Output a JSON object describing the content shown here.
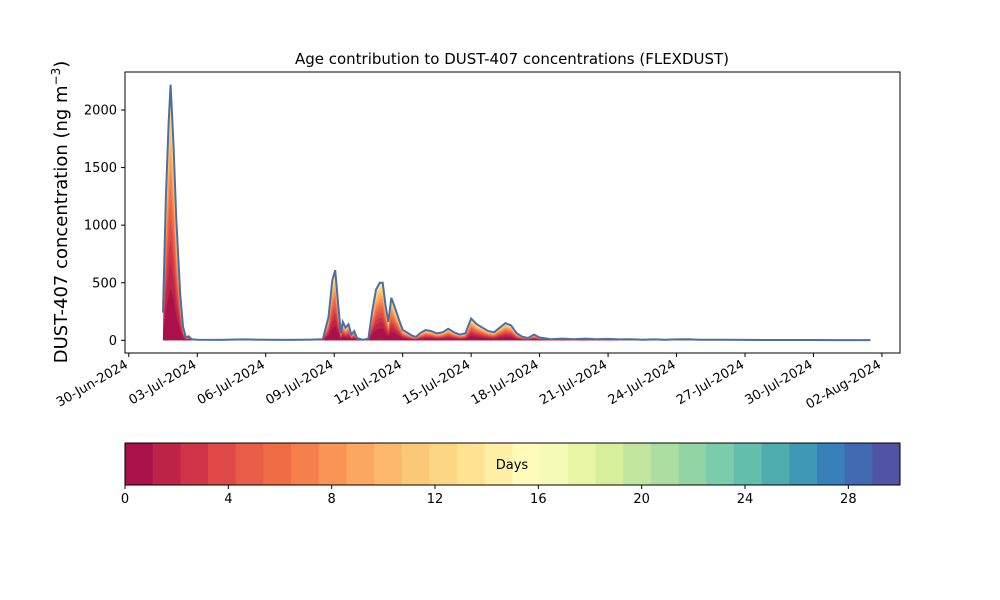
{
  "chart_data": {
    "type": "area",
    "title": "Age contribution to DUST-407 concentrations (FLEXDUST)",
    "ylabel": "DUST-407 concentration (ng m⁻³)",
    "ylabel_main": "DUST-407 concentration (ng m",
    "ylabel_sup": "−3",
    "ylabel_close": ")",
    "xlabel": "",
    "x_axis_kind": "date",
    "xlim": [
      "2024-06-29T20:00",
      "2024-08-02T19:00"
    ],
    "ylim": [
      -110,
      2330
    ],
    "yticks": [
      0,
      500,
      1000,
      1500,
      2000
    ],
    "xtick_dates": [
      "2024-06-30",
      "2024-07-03",
      "2024-07-06",
      "2024-07-09",
      "2024-07-12",
      "2024-07-15",
      "2024-07-18",
      "2024-07-21",
      "2024-07-24",
      "2024-07-27",
      "2024-07-30",
      "2024-08-02"
    ],
    "xtick_labels": [
      "30-Jun-2024",
      "03-Jul-2024",
      "06-Jul-2024",
      "09-Jul-2024",
      "12-Jul-2024",
      "15-Jul-2024",
      "18-Jul-2024",
      "21-Jul-2024",
      "24-Jul-2024",
      "27-Jul-2024",
      "30-Jul-2024",
      "02-Aug-2024"
    ],
    "total_series": {
      "color": "#4a6fa5",
      "points": [
        [
          "2024-07-01T12:00",
          240
        ],
        [
          "2024-07-01T15:00",
          1250
        ],
        [
          "2024-07-01T18:00",
          1900
        ],
        [
          "2024-07-01T20:00",
          2220
        ],
        [
          "2024-07-01T23:00",
          1700
        ],
        [
          "2024-07-02T02:00",
          1050
        ],
        [
          "2024-07-02T06:00",
          400
        ],
        [
          "2024-07-02T09:00",
          120
        ],
        [
          "2024-07-02T12:00",
          25
        ],
        [
          "2024-07-02T15:00",
          35
        ],
        [
          "2024-07-02T18:00",
          10
        ],
        [
          "2024-07-03T00:00",
          5
        ],
        [
          "2024-07-04T00:00",
          4
        ],
        [
          "2024-07-05T00:00",
          8
        ],
        [
          "2024-07-06T00:00",
          5
        ],
        [
          "2024-07-07T00:00",
          4
        ],
        [
          "2024-07-08T00:00",
          6
        ],
        [
          "2024-07-08T12:00",
          10
        ],
        [
          "2024-07-08T18:00",
          200
        ],
        [
          "2024-07-08T22:00",
          520
        ],
        [
          "2024-07-09T01:00",
          610
        ],
        [
          "2024-07-09T04:00",
          330
        ],
        [
          "2024-07-09T07:00",
          60
        ],
        [
          "2024-07-09T09:00",
          160
        ],
        [
          "2024-07-09T12:00",
          110
        ],
        [
          "2024-07-09T15:00",
          140
        ],
        [
          "2024-07-09T18:00",
          50
        ],
        [
          "2024-07-09T21:00",
          80
        ],
        [
          "2024-07-10T00:00",
          20
        ],
        [
          "2024-07-10T06:00",
          5
        ],
        [
          "2024-07-10T12:00",
          15
        ],
        [
          "2024-07-10T16:00",
          250
        ],
        [
          "2024-07-10T20:00",
          440
        ],
        [
          "2024-07-11T00:00",
          500
        ],
        [
          "2024-07-11T03:00",
          500
        ],
        [
          "2024-07-11T06:00",
          300
        ],
        [
          "2024-07-11T09:00",
          160
        ],
        [
          "2024-07-11T12:00",
          370
        ],
        [
          "2024-07-11T16:00",
          280
        ],
        [
          "2024-07-11T20:00",
          180
        ],
        [
          "2024-07-12T00:00",
          90
        ],
        [
          "2024-07-12T06:00",
          60
        ],
        [
          "2024-07-12T10:00",
          40
        ],
        [
          "2024-07-12T14:00",
          30
        ],
        [
          "2024-07-12T18:00",
          60
        ],
        [
          "2024-07-13T00:00",
          90
        ],
        [
          "2024-07-13T06:00",
          80
        ],
        [
          "2024-07-13T12:00",
          60
        ],
        [
          "2024-07-13T18:00",
          70
        ],
        [
          "2024-07-14T00:00",
          100
        ],
        [
          "2024-07-14T06:00",
          70
        ],
        [
          "2024-07-14T12:00",
          50
        ],
        [
          "2024-07-14T18:00",
          60
        ],
        [
          "2024-07-15T00:00",
          190
        ],
        [
          "2024-07-15T06:00",
          140
        ],
        [
          "2024-07-15T12:00",
          110
        ],
        [
          "2024-07-15T18:00",
          80
        ],
        [
          "2024-07-16T00:00",
          70
        ],
        [
          "2024-07-16T06:00",
          110
        ],
        [
          "2024-07-16T12:00",
          150
        ],
        [
          "2024-07-16T18:00",
          130
        ],
        [
          "2024-07-17T00:00",
          60
        ],
        [
          "2024-07-17T06:00",
          30
        ],
        [
          "2024-07-17T12:00",
          20
        ],
        [
          "2024-07-17T18:00",
          50
        ],
        [
          "2024-07-18T00:00",
          25
        ],
        [
          "2024-07-18T12:00",
          10
        ],
        [
          "2024-07-19T00:00",
          15
        ],
        [
          "2024-07-19T12:00",
          10
        ],
        [
          "2024-07-20T00:00",
          15
        ],
        [
          "2024-07-20T12:00",
          10
        ],
        [
          "2024-07-21T00:00",
          12
        ],
        [
          "2024-07-21T12:00",
          8
        ],
        [
          "2024-07-22T00:00",
          10
        ],
        [
          "2024-07-22T12:00",
          5
        ],
        [
          "2024-07-23T00:00",
          8
        ],
        [
          "2024-07-23T12:00",
          5
        ],
        [
          "2024-07-24T00:00",
          8
        ],
        [
          "2024-07-24T12:00",
          10
        ],
        [
          "2024-07-25T00:00",
          5
        ],
        [
          "2024-07-26T00:00",
          5
        ],
        [
          "2024-07-27T00:00",
          4
        ],
        [
          "2024-07-28T00:00",
          3
        ],
        [
          "2024-07-29T00:00",
          3
        ],
        [
          "2024-07-30T00:00",
          3
        ],
        [
          "2024-07-31T00:00",
          2
        ],
        [
          "2024-08-01T00:00",
          2
        ],
        [
          "2024-08-01T12:00",
          2
        ]
      ]
    },
    "age_bands_fraction_note": "",
    "colorbar": {
      "label": "Days",
      "range": [
        0,
        30
      ],
      "ticks": [
        0,
        4,
        8,
        12,
        16,
        20,
        24,
        28
      ],
      "colors": [
        "#a8114a",
        "#bd2448",
        "#cf3548",
        "#df4a49",
        "#e85c48",
        "#f06c45",
        "#f6804c",
        "#f99456",
        "#fca861",
        "#fdb96b",
        "#fdc877",
        "#fdd685",
        "#fee391",
        "#fff0a6",
        "#fffbbb",
        "#f5fab6",
        "#e8f5a3",
        "#d7ef9b",
        "#c3e69f",
        "#acdda1",
        "#93d4a4",
        "#7accaa",
        "#63bfab",
        "#4fadad",
        "#3e98b6",
        "#3780b9",
        "#426ab0",
        "#5154a4"
      ]
    }
  }
}
